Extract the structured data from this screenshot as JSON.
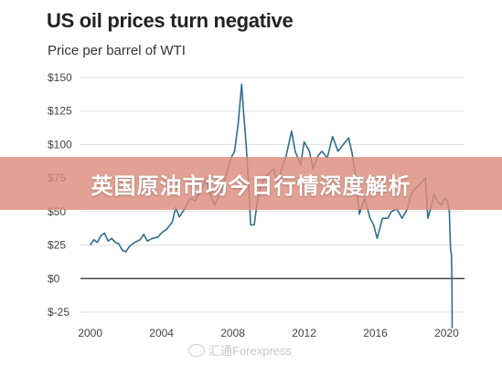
{
  "chart_data": {
    "type": "line",
    "title": "US oil prices turn negative",
    "subtitle": "Price per barrel of WTI",
    "xlabel": "",
    "ylabel": "",
    "xlim": [
      1999.4,
      2020.9
    ],
    "ylim": [
      -25,
      150
    ],
    "yticks": [
      {
        "value": 150,
        "label": "$150"
      },
      {
        "value": 125,
        "label": "$125"
      },
      {
        "value": 100,
        "label": "$100"
      },
      {
        "value": 75,
        "label": "$75"
      },
      {
        "value": 50,
        "label": "$50"
      },
      {
        "value": 25,
        "label": "$25"
      },
      {
        "value": 0,
        "label": "$0"
      },
      {
        "value": -25,
        "label": "$-25"
      }
    ],
    "xticks": [
      {
        "value": 2000,
        "label": "2000"
      },
      {
        "value": 2004,
        "label": "2004"
      },
      {
        "value": 2008,
        "label": "2008"
      },
      {
        "value": 2012,
        "label": "2012"
      },
      {
        "value": 2016,
        "label": "2016"
      },
      {
        "value": 2020,
        "label": "2020"
      }
    ],
    "grid": true,
    "zero_line": true,
    "series": [
      {
        "color": "#2e6f8e",
        "points": [
          [
            2000.0,
            25
          ],
          [
            2000.2,
            29
          ],
          [
            2000.4,
            27
          ],
          [
            2000.6,
            32
          ],
          [
            2000.8,
            34
          ],
          [
            2001.0,
            28
          ],
          [
            2001.2,
            30
          ],
          [
            2001.4,
            27
          ],
          [
            2001.6,
            26
          ],
          [
            2001.8,
            21
          ],
          [
            2002.0,
            20
          ],
          [
            2002.2,
            24
          ],
          [
            2002.5,
            27
          ],
          [
            2002.8,
            29
          ],
          [
            2003.0,
            33
          ],
          [
            2003.2,
            28
          ],
          [
            2003.5,
            30
          ],
          [
            2003.8,
            31
          ],
          [
            2004.0,
            34
          ],
          [
            2004.3,
            37
          ],
          [
            2004.6,
            42
          ],
          [
            2004.8,
            53
          ],
          [
            2005.0,
            46
          ],
          [
            2005.3,
            52
          ],
          [
            2005.6,
            60
          ],
          [
            2005.9,
            58
          ],
          [
            2006.2,
            66
          ],
          [
            2006.5,
            74
          ],
          [
            2006.8,
            60
          ],
          [
            2007.0,
            55
          ],
          [
            2007.3,
            64
          ],
          [
            2007.6,
            76
          ],
          [
            2007.9,
            90
          ],
          [
            2008.1,
            95
          ],
          [
            2008.3,
            115
          ],
          [
            2008.5,
            145
          ],
          [
            2008.6,
            125
          ],
          [
            2008.75,
            100
          ],
          [
            2008.9,
            68
          ],
          [
            2009.0,
            40
          ],
          [
            2009.2,
            40
          ],
          [
            2009.4,
            60
          ],
          [
            2009.6,
            70
          ],
          [
            2009.8,
            75
          ],
          [
            2010.0,
            78
          ],
          [
            2010.3,
            82
          ],
          [
            2010.5,
            72
          ],
          [
            2010.8,
            84
          ],
          [
            2011.0,
            92
          ],
          [
            2011.3,
            110
          ],
          [
            2011.5,
            95
          ],
          [
            2011.8,
            85
          ],
          [
            2012.0,
            102
          ],
          [
            2012.3,
            95
          ],
          [
            2012.5,
            82
          ],
          [
            2012.8,
            92
          ],
          [
            2013.0,
            95
          ],
          [
            2013.3,
            90
          ],
          [
            2013.6,
            106
          ],
          [
            2013.9,
            95
          ],
          [
            2014.2,
            100
          ],
          [
            2014.5,
            105
          ],
          [
            2014.7,
            93
          ],
          [
            2014.9,
            75
          ],
          [
            2015.1,
            48
          ],
          [
            2015.4,
            60
          ],
          [
            2015.7,
            45
          ],
          [
            2015.9,
            40
          ],
          [
            2016.1,
            30
          ],
          [
            2016.4,
            45
          ],
          [
            2016.7,
            45
          ],
          [
            2016.9,
            50
          ],
          [
            2017.2,
            52
          ],
          [
            2017.5,
            45
          ],
          [
            2017.8,
            52
          ],
          [
            2018.0,
            63
          ],
          [
            2018.3,
            68
          ],
          [
            2018.6,
            72
          ],
          [
            2018.8,
            75
          ],
          [
            2018.95,
            45
          ],
          [
            2019.1,
            52
          ],
          [
            2019.3,
            63
          ],
          [
            2019.5,
            57
          ],
          [
            2019.7,
            55
          ],
          [
            2019.9,
            60
          ],
          [
            2020.05,
            58
          ],
          [
            2020.15,
            50
          ],
          [
            2020.22,
            22
          ],
          [
            2020.27,
            18
          ],
          [
            2020.3,
            -5
          ],
          [
            2020.31,
            -37
          ]
        ]
      }
    ]
  },
  "overlay": {
    "banner_text": "英国原油市场今日行情深度解析",
    "watermark_text": "汇通Forexpress"
  }
}
